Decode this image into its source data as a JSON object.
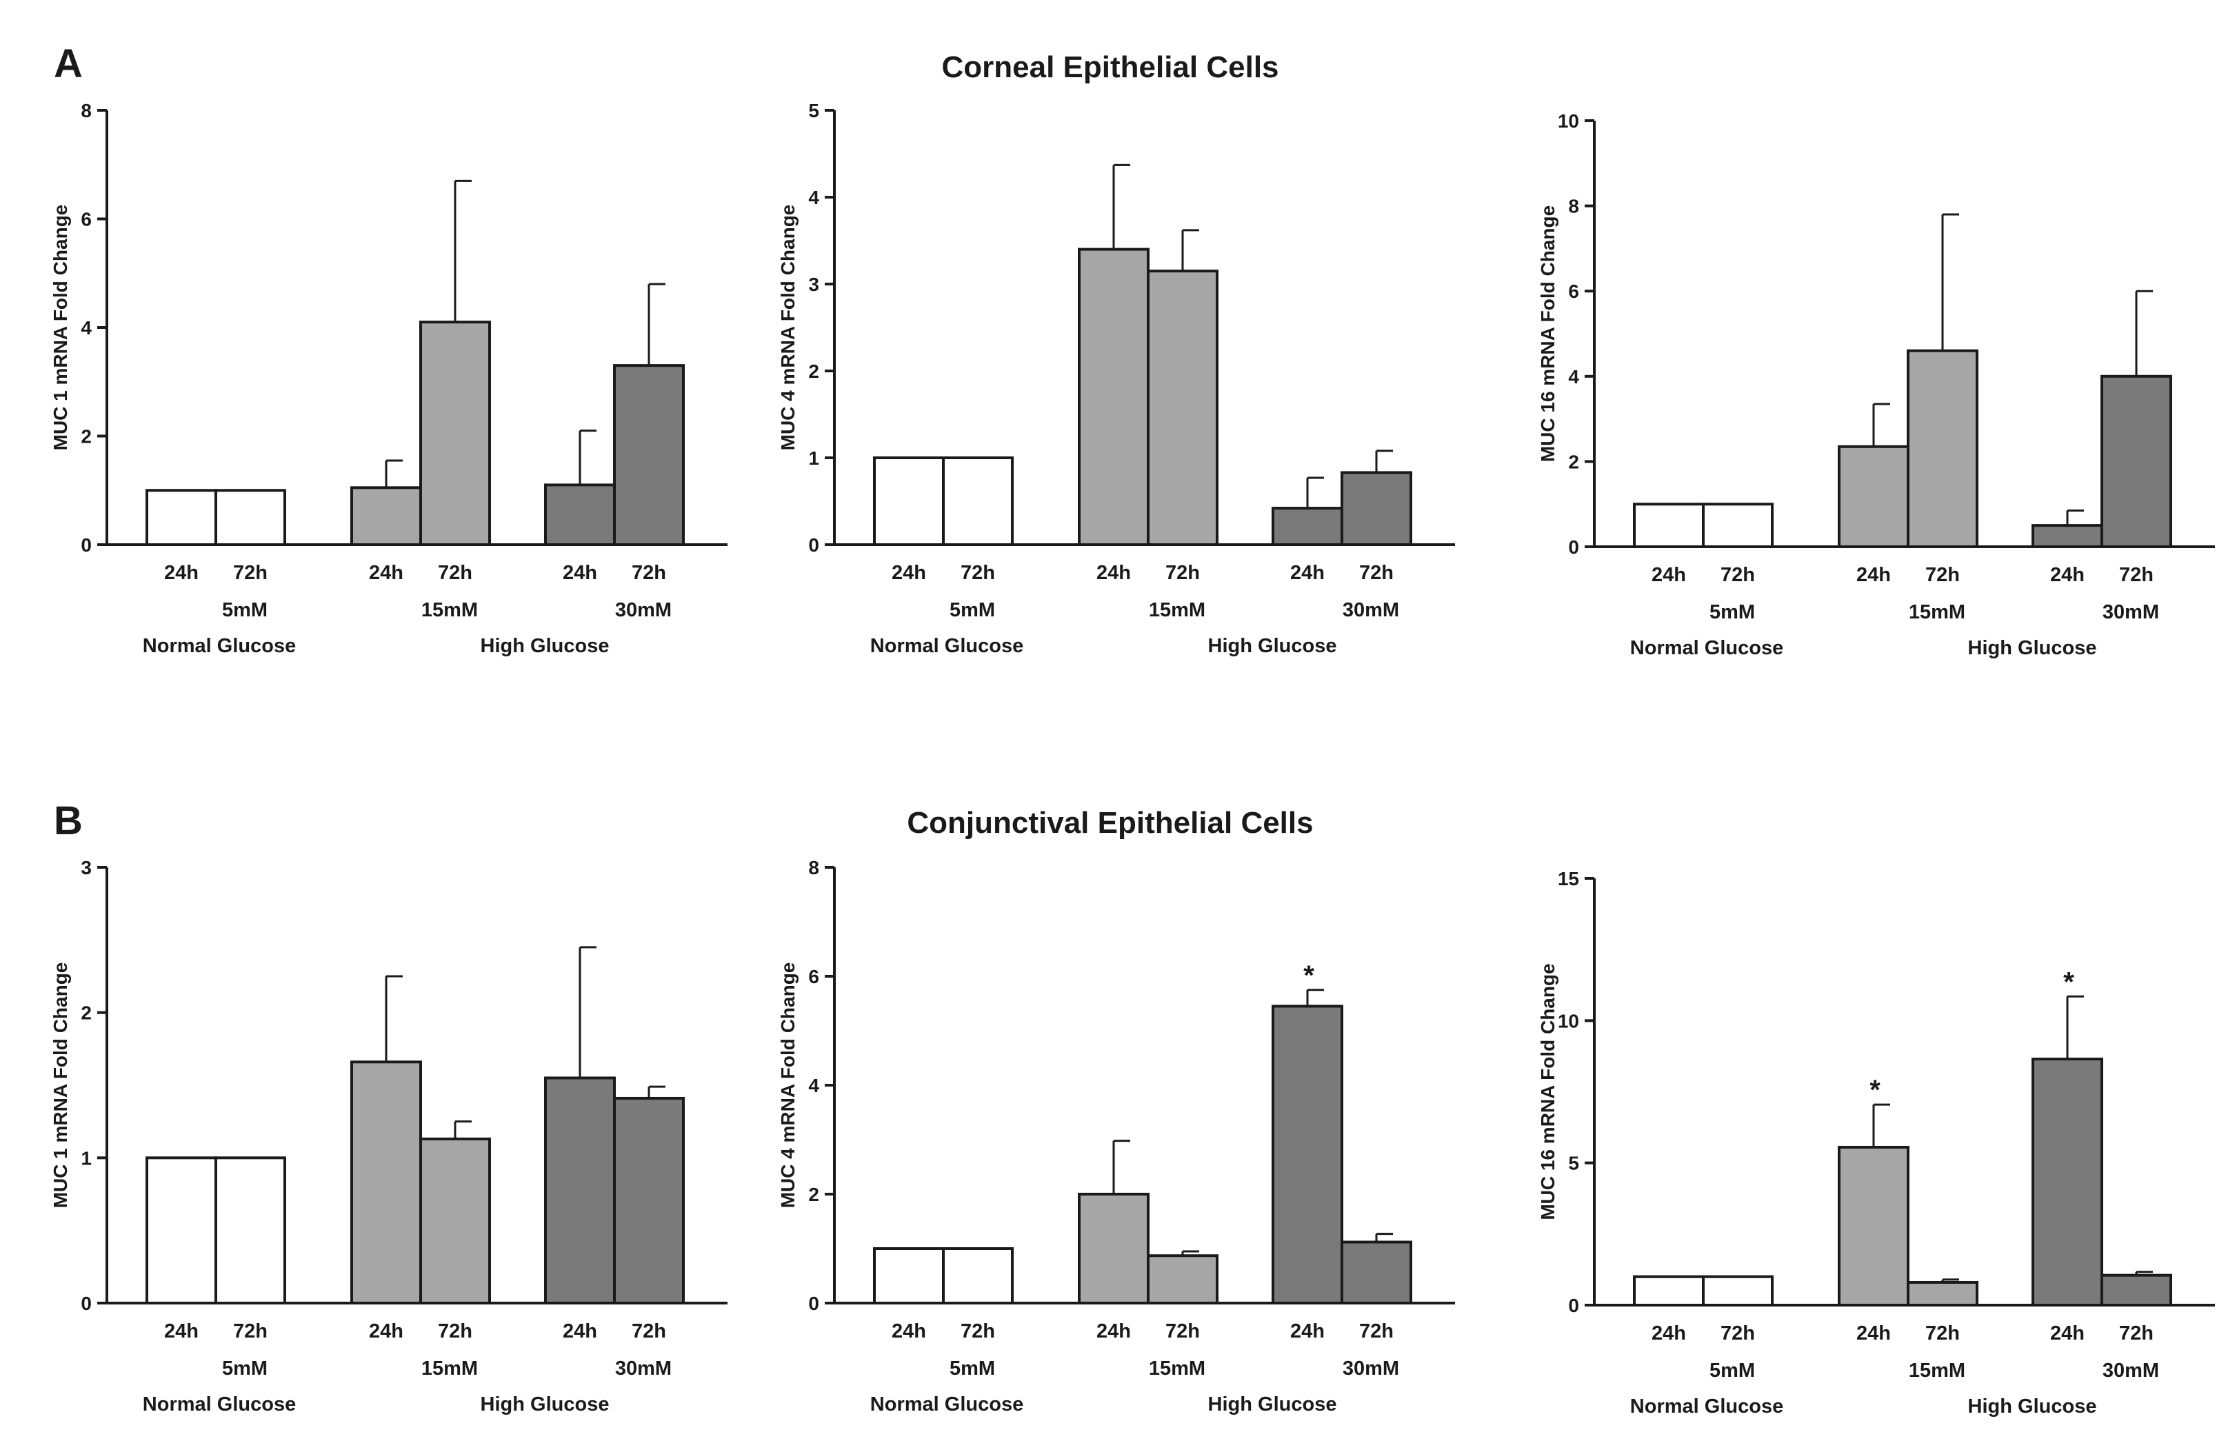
{
  "colors": {
    "normal": "#ffffff",
    "high15": "#a6a6a6",
    "high30": "#7a7a7a",
    "ink": "#1a1a1a"
  },
  "rows": [
    {
      "letter": "A",
      "title": "Corneal Epithelial Cells"
    },
    {
      "letter": "B",
      "title": "Conjunctival Epithelial Cells"
    }
  ],
  "chart_data": [
    {
      "type": "bar",
      "row": "A",
      "panel": 1,
      "ylabel": "MUC 1 mRNA Fold Change",
      "ylim": [
        0,
        8
      ],
      "yticks": [
        "0",
        "2",
        "4",
        "6",
        "8"
      ],
      "time_labels": [
        "24h",
        "72h"
      ],
      "groups": [
        "5mM",
        "15mM",
        "30mM"
      ],
      "conditions": [
        "Normal Glucose",
        "High Glucose"
      ],
      "series": [
        {
          "name": "5mM",
          "values": [
            1.0,
            1.0
          ],
          "errors": [
            0,
            0
          ],
          "sig": [
            "",
            ""
          ]
        },
        {
          "name": "15mM",
          "values": [
            1.05,
            4.1
          ],
          "errors": [
            0.5,
            2.6
          ],
          "sig": [
            "",
            ""
          ]
        },
        {
          "name": "30mM",
          "values": [
            1.1,
            3.3
          ],
          "errors": [
            1.0,
            1.5
          ],
          "sig": [
            "",
            ""
          ]
        }
      ]
    },
    {
      "type": "bar",
      "row": "A",
      "panel": 2,
      "ylabel": "MUC 4 mRNA Fold Change",
      "ylim": [
        0,
        5
      ],
      "yticks": [
        "0",
        "1",
        "2",
        "3",
        "4",
        "5"
      ],
      "time_labels": [
        "24h",
        "72h"
      ],
      "groups": [
        "5mM",
        "15mM",
        "30mM"
      ],
      "conditions": [
        "Normal Glucose",
        "High Glucose"
      ],
      "series": [
        {
          "name": "5mM",
          "values": [
            1.0,
            1.0
          ],
          "errors": [
            0,
            0
          ],
          "sig": [
            "",
            ""
          ]
        },
        {
          "name": "15mM",
          "values": [
            3.4,
            3.15
          ],
          "errors": [
            0.97,
            0.47
          ],
          "sig": [
            "",
            ""
          ]
        },
        {
          "name": "30mM",
          "values": [
            0.42,
            0.83
          ],
          "errors": [
            0.35,
            0.25
          ],
          "sig": [
            "",
            ""
          ]
        }
      ]
    },
    {
      "type": "bar",
      "row": "A",
      "panel": 3,
      "ylabel": "MUC 16 mRNA Fold Change",
      "ylim": [
        0,
        10
      ],
      "yticks": [
        "0",
        "2",
        "4",
        "6",
        "8",
        "10"
      ],
      "time_labels": [
        "24h",
        "72h"
      ],
      "groups": [
        "5mM",
        "15mM",
        "30mM"
      ],
      "conditions": [
        "Normal Glucose",
        "High Glucose"
      ],
      "series": [
        {
          "name": "5mM",
          "values": [
            1.0,
            1.0
          ],
          "errors": [
            0,
            0
          ],
          "sig": [
            "",
            ""
          ]
        },
        {
          "name": "15mM",
          "values": [
            2.35,
            4.6
          ],
          "errors": [
            1.0,
            3.2
          ],
          "sig": [
            "",
            ""
          ]
        },
        {
          "name": "30mM",
          "values": [
            0.5,
            4.0
          ],
          "errors": [
            0.35,
            2.0
          ],
          "sig": [
            "",
            ""
          ]
        }
      ]
    },
    {
      "type": "bar",
      "row": "B",
      "panel": 1,
      "ylabel": "MUC 1 mRNA Fold Change",
      "ylim": [
        0,
        3
      ],
      "yticks": [
        "0",
        "1",
        "2",
        "3"
      ],
      "time_labels": [
        "24h",
        "72h"
      ],
      "groups": [
        "5mM",
        "15mM",
        "30mM"
      ],
      "conditions": [
        "Normal Glucose",
        "High Glucose"
      ],
      "series": [
        {
          "name": "5mM",
          "values": [
            1.0,
            1.0
          ],
          "errors": [
            0,
            0
          ],
          "sig": [
            "",
            ""
          ]
        },
        {
          "name": "15mM",
          "values": [
            1.66,
            1.13
          ],
          "errors": [
            0.59,
            0.12
          ],
          "sig": [
            "",
            ""
          ]
        },
        {
          "name": "30mM",
          "values": [
            1.55,
            1.41
          ],
          "errors": [
            0.9,
            0.08
          ],
          "sig": [
            "",
            ""
          ]
        }
      ]
    },
    {
      "type": "bar",
      "row": "B",
      "panel": 2,
      "ylabel": "MUC 4 mRNA Fold Change",
      "ylim": [
        0,
        8
      ],
      "yticks": [
        "0",
        "2",
        "4",
        "6",
        "8"
      ],
      "time_labels": [
        "24h",
        "72h"
      ],
      "groups": [
        "5mM",
        "15mM",
        "30mM"
      ],
      "conditions": [
        "Normal Glucose",
        "High Glucose"
      ],
      "series": [
        {
          "name": "5mM",
          "values": [
            1.0,
            1.0
          ],
          "errors": [
            0,
            0
          ],
          "sig": [
            "",
            ""
          ]
        },
        {
          "name": "15mM",
          "values": [
            2.0,
            0.87
          ],
          "errors": [
            0.98,
            0.08
          ],
          "sig": [
            "",
            ""
          ]
        },
        {
          "name": "30mM",
          "values": [
            5.45,
            1.12
          ],
          "errors": [
            0.3,
            0.15
          ],
          "sig": [
            "*",
            ""
          ]
        }
      ]
    },
    {
      "type": "bar",
      "row": "B",
      "panel": 3,
      "ylabel": "MUC 16 mRNA Fold Change",
      "ylim": [
        0,
        15
      ],
      "yticks": [
        "0",
        "5",
        "10",
        "15"
      ],
      "time_labels": [
        "24h",
        "72h"
      ],
      "groups": [
        "5mM",
        "15mM",
        "30mM"
      ],
      "conditions": [
        "Normal Glucose",
        "High Glucose"
      ],
      "series": [
        {
          "name": "5mM",
          "values": [
            1.0,
            1.0
          ],
          "errors": [
            0,
            0
          ],
          "sig": [
            "",
            ""
          ]
        },
        {
          "name": "15mM",
          "values": [
            5.55,
            0.8
          ],
          "errors": [
            1.5,
            0.1
          ],
          "sig": [
            "*",
            ""
          ]
        },
        {
          "name": "30mM",
          "values": [
            8.65,
            1.05
          ],
          "errors": [
            2.2,
            0.12
          ],
          "sig": [
            "*",
            ""
          ]
        }
      ]
    }
  ]
}
